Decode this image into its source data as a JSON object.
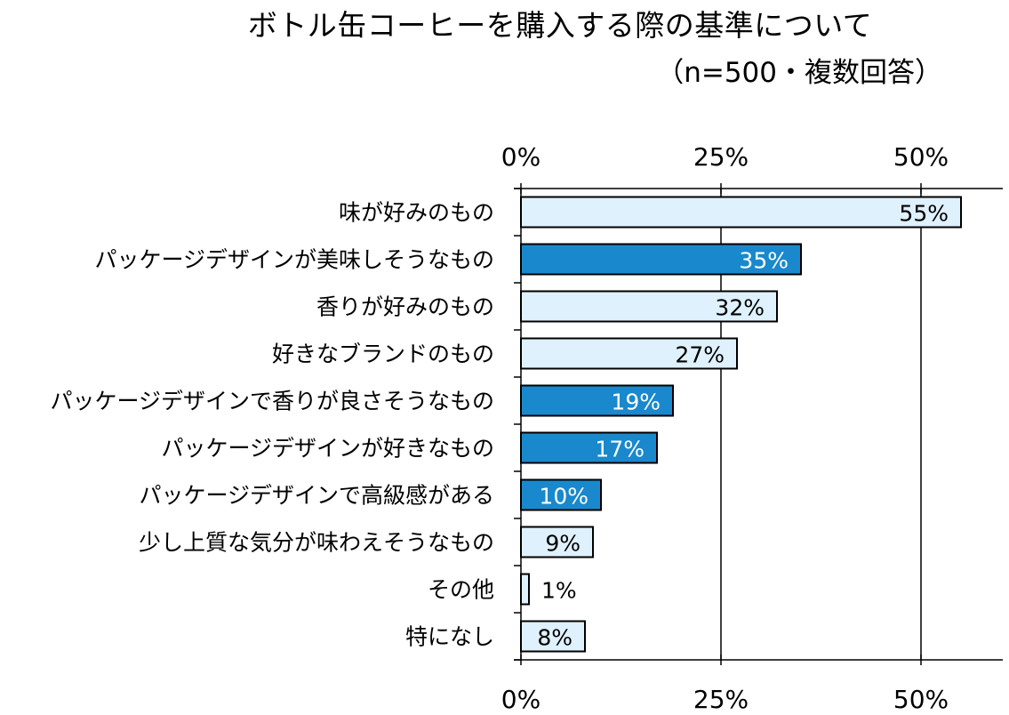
{
  "title": "ボトル缶コーヒーを購入する際の基準について",
  "subtitle": "（n=500・複数回答）",
  "colors": {
    "light": "#dff1fc",
    "dark": "#1a88cc",
    "outline": "#000000"
  },
  "chart_data": {
    "type": "bar",
    "orientation": "horizontal",
    "title": "ボトル缶コーヒーを購入する際の基準について",
    "subtitle": "（n=500・複数回答）",
    "categories": [
      "味が好みのもの",
      "パッケージデザインが美味しそうなもの",
      "香りが好みのもの",
      "好きなブランドのもの",
      "パッケージデザインで香りが良さそうなもの",
      "パッケージデザインが好きなもの",
      "パッケージデザインで高級感がある",
      "少し上質な気分が味わえそうなもの",
      "その他",
      "特になし"
    ],
    "values": [
      55,
      35,
      32,
      27,
      19,
      17,
      10,
      9,
      1,
      8
    ],
    "value_labels": [
      "55%",
      "35%",
      "32%",
      "27%",
      "19%",
      "17%",
      "10%",
      "9%",
      "1%",
      "8%"
    ],
    "highlight": [
      false,
      true,
      false,
      false,
      true,
      true,
      true,
      false,
      false,
      false
    ],
    "xlim": [
      0,
      60
    ],
    "xticks": [
      0,
      25,
      50
    ],
    "xtick_labels": [
      "0%",
      "25%",
      "50%"
    ],
    "axis_top_and_bottom": true,
    "grid": true
  }
}
